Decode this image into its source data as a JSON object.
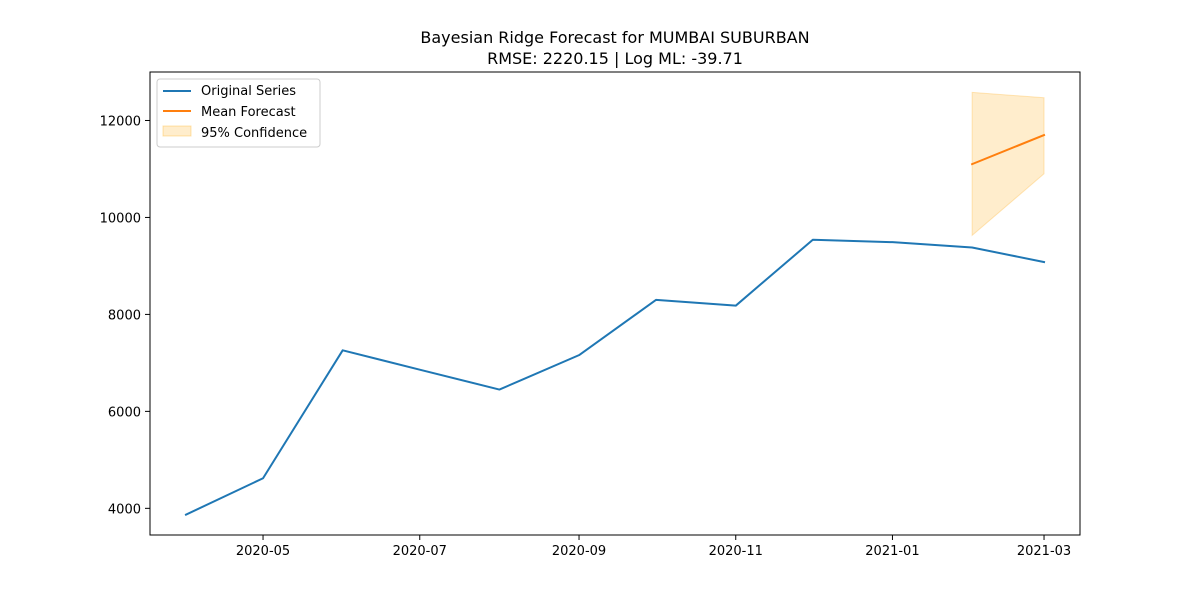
{
  "chart_data": {
    "type": "line",
    "title": "Bayesian Ridge Forecast for MUMBAI SUBURBAN",
    "subtitle": "RMSE: 2220.15 | Log ML: -39.71",
    "xlabel": "",
    "ylabel": "",
    "xlim": [
      "2020-03-18",
      "2021-03-15"
    ],
    "ylim": [
      3450,
      13000
    ],
    "x_ticks": [
      "2020-05-01",
      "2020-07-01",
      "2020-09-01",
      "2020-11-01",
      "2021-01-01",
      "2021-03-01"
    ],
    "x_tick_labels": [
      "2020-05",
      "2020-07",
      "2020-09",
      "2020-11",
      "2021-01",
      "2021-03"
    ],
    "y_ticks": [
      4000,
      6000,
      8000,
      10000,
      12000
    ],
    "y_tick_labels": [
      "4000",
      "6000",
      "8000",
      "10000",
      "12000"
    ],
    "grid": false,
    "legend_position": "top-left",
    "series": [
      {
        "name": "Original Series",
        "color": "#1f77b4",
        "x": [
          "2020-04-01",
          "2020-05-01",
          "2020-06-01",
          "2020-07-01",
          "2020-08-01",
          "2020-09-01",
          "2020-10-01",
          "2020-11-01",
          "2020-12-01",
          "2021-01-01",
          "2021-02-01",
          "2021-03-01"
        ],
        "y": [
          3870,
          4620,
          7260,
          6860,
          6450,
          7160,
          8300,
          8180,
          9540,
          9490,
          9380,
          9080
        ]
      },
      {
        "name": "Mean Forecast",
        "color": "#ff7f0e",
        "x": [
          "2021-02-01",
          "2021-03-01"
        ],
        "y": [
          11100,
          11700
        ]
      }
    ],
    "bands": [
      {
        "name": "95% Confidence",
        "color": "#ffa500",
        "opacity": 0.2,
        "x": [
          "2021-02-01",
          "2021-03-01"
        ],
        "lower": [
          9630,
          10900
        ],
        "upper": [
          12580,
          12470
        ]
      }
    ]
  }
}
